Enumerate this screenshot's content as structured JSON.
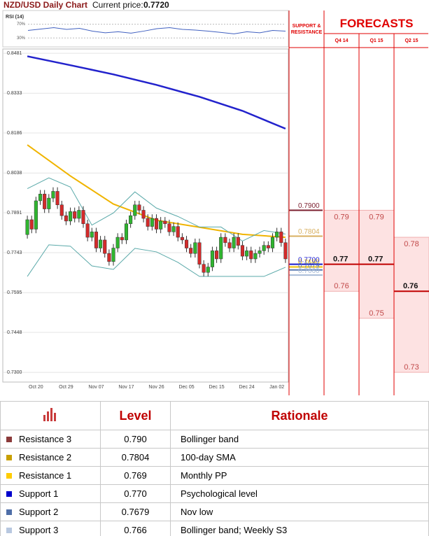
{
  "chart_data": [
    {
      "type": "line",
      "title": "RSI (14)",
      "xlim": [
        0,
        60
      ],
      "ylim": [
        10,
        100
      ],
      "yticks": [
        {
          "value": 70,
          "label": "70%"
        },
        {
          "value": 30,
          "label": "30%"
        }
      ],
      "x": [
        0,
        3,
        6,
        9,
        12,
        15,
        18,
        21,
        24,
        27,
        30,
        33,
        36,
        39,
        42,
        45,
        48,
        51,
        54,
        57,
        60
      ],
      "series": [
        {
          "color": "#4060c0",
          "values": [
            52,
            56,
            60,
            55,
            58,
            50,
            45,
            48,
            44,
            50,
            57,
            60,
            55,
            53,
            50,
            46,
            42,
            48,
            45,
            52,
            50
          ]
        }
      ]
    },
    {
      "type": "candlestick",
      "title": "NZD/USD Daily Chart",
      "price_label": "Current price:",
      "current_price": "0.7720",
      "up_color": "#2fb52f",
      "down_color": "#d42a2a",
      "grid": true,
      "ylim": [
        0.7264,
        0.8497
      ],
      "yticks": [
        0.8481,
        0.8333,
        0.8186,
        0.8038,
        0.7891,
        0.7743,
        0.7595,
        0.7448,
        {
          "value": 0.73,
          "label": "0.7300"
        }
      ],
      "categories": [
        null,
        null,
        "Oct 20",
        null,
        null,
        null,
        null,
        null,
        null,
        "Oct 29",
        null,
        null,
        null,
        null,
        null,
        null,
        "Nov 07",
        null,
        null,
        null,
        null,
        null,
        null,
        "Nov 17",
        null,
        null,
        null,
        null,
        null,
        null,
        "Nov 26",
        null,
        null,
        null,
        null,
        null,
        null,
        "Dec 05",
        null,
        null,
        null,
        null,
        null,
        null,
        "Dec 15",
        null,
        null,
        null,
        null,
        null,
        null,
        "Dec 24",
        null,
        null,
        null,
        null,
        null,
        null,
        "Jan 02",
        null,
        null
      ],
      "open": [
        0.781,
        0.7865,
        0.783,
        0.7935,
        0.796,
        0.7905,
        0.7945,
        0.797,
        0.792,
        0.788,
        0.786,
        0.7895,
        0.787,
        0.79,
        0.785,
        0.78,
        0.782,
        0.776,
        0.779,
        0.774,
        0.771,
        0.776,
        0.78,
        0.779,
        0.785,
        0.788,
        0.792,
        0.79,
        0.787,
        0.784,
        0.787,
        0.783,
        0.786,
        0.785,
        0.782,
        0.784,
        0.78,
        0.779,
        0.776,
        0.774,
        0.778,
        0.77,
        0.767,
        0.769,
        0.775,
        0.772,
        0.78,
        0.778,
        0.776,
        0.78,
        0.777,
        0.773,
        0.775,
        0.772,
        0.774,
        0.775,
        0.777,
        0.776,
        0.78,
        0.782,
        0.778
      ],
      "high": [
        0.788,
        0.788,
        0.795,
        0.7975,
        0.7975,
        0.796,
        0.7985,
        0.7985,
        0.7935,
        0.7895,
        0.791,
        0.791,
        0.7915,
        0.7915,
        0.7865,
        0.7835,
        0.7835,
        0.7805,
        0.7805,
        0.7755,
        0.7775,
        0.7815,
        0.7815,
        0.7865,
        0.7895,
        0.7935,
        0.7935,
        0.7915,
        0.7885,
        0.7885,
        0.7885,
        0.7875,
        0.7875,
        0.7865,
        0.7855,
        0.7855,
        0.7815,
        0.7805,
        0.7775,
        0.7795,
        0.7795,
        0.7715,
        0.7705,
        0.7765,
        0.7765,
        0.7815,
        0.7815,
        0.7795,
        0.7815,
        0.7815,
        0.7785,
        0.7765,
        0.7765,
        0.7755,
        0.7765,
        0.7785,
        0.7785,
        0.7815,
        0.7835,
        0.7835,
        0.7795
      ],
      "low": [
        0.7795,
        0.7815,
        0.7815,
        0.792,
        0.789,
        0.789,
        0.793,
        0.7905,
        0.7865,
        0.7845,
        0.7845,
        0.7855,
        0.7855,
        0.7835,
        0.7785,
        0.7785,
        0.7745,
        0.7745,
        0.7725,
        0.7695,
        0.7695,
        0.7745,
        0.7775,
        0.7775,
        0.7835,
        0.7865,
        0.7885,
        0.7855,
        0.7825,
        0.7825,
        0.7815,
        0.7815,
        0.7835,
        0.7805,
        0.7805,
        0.7785,
        0.7775,
        0.7745,
        0.7725,
        0.7725,
        0.7685,
        0.7655,
        0.7655,
        0.7675,
        0.7705,
        0.7705,
        0.7765,
        0.7745,
        0.7745,
        0.7755,
        0.7715,
        0.7715,
        0.7705,
        0.7705,
        0.7725,
        0.7735,
        0.7745,
        0.7745,
        0.7785,
        0.7765,
        0.7705
      ],
      "close": [
        0.7865,
        0.783,
        0.7935,
        0.796,
        0.7905,
        0.7945,
        0.797,
        0.792,
        0.788,
        0.786,
        0.7895,
        0.787,
        0.79,
        0.785,
        0.78,
        0.782,
        0.776,
        0.779,
        0.774,
        0.771,
        0.776,
        0.78,
        0.779,
        0.785,
        0.788,
        0.792,
        0.79,
        0.787,
        0.784,
        0.787,
        0.783,
        0.786,
        0.785,
        0.782,
        0.784,
        0.78,
        0.779,
        0.776,
        0.774,
        0.778,
        0.77,
        0.767,
        0.769,
        0.775,
        0.772,
        0.78,
        0.778,
        0.776,
        0.78,
        0.777,
        0.773,
        0.775,
        0.772,
        0.774,
        0.775,
        0.777,
        0.776,
        0.78,
        0.782,
        0.778,
        0.772
      ],
      "lines": [
        {
          "color": "#2222cc",
          "width": 2.5,
          "x": [
            0,
            10,
            20,
            30,
            40,
            50,
            60
          ],
          "values": [
            0.847,
            0.8437,
            0.8403,
            0.8364,
            0.832,
            0.8268,
            0.8202
          ]
        },
        {
          "color": "#f0b400",
          "width": 2,
          "x": [
            0,
            10,
            20,
            30,
            40,
            50,
            60
          ],
          "values": [
            0.8142,
            0.8027,
            0.7923,
            0.7863,
            0.7837,
            0.7811,
            0.78
          ]
        },
        {
          "color": "#5aa9a9",
          "width": 1,
          "x": [
            0,
            5,
            10,
            15,
            20,
            25,
            30,
            35,
            40,
            45,
            50,
            55,
            60
          ],
          "values": [
            0.798,
            0.802,
            0.7986,
            0.7845,
            0.789,
            0.7968,
            0.7908,
            0.7877,
            0.7838,
            0.7838,
            0.7786,
            0.7825,
            0.7812
          ]
        },
        {
          "color": "#5aa9a9",
          "width": 1,
          "x": [
            0,
            5,
            10,
            15,
            20,
            25,
            30,
            35,
            40,
            45,
            50,
            55,
            60
          ],
          "values": [
            0.7655,
            0.7772,
            0.7767,
            0.7694,
            0.7681,
            0.7759,
            0.7746,
            0.7707,
            0.7655,
            0.7655,
            0.7655,
            0.7655,
            0.7689
          ]
        }
      ],
      "levels": [
        {
          "value": 0.79,
          "label": "0.7900",
          "color": "#7b1f2f"
        },
        {
          "value": 0.7804,
          "label": "0.7804",
          "color": "#d8b060"
        },
        {
          "value": 0.769,
          "label": "0.7690",
          "color": "#f0c000"
        },
        {
          "value": 0.77,
          "label": "0.7700",
          "color": "#1a1acc"
        },
        {
          "value": 0.7679,
          "label": "0.7679",
          "color": "#5a7ab0"
        },
        {
          "value": 0.766,
          "label": "0.7660",
          "color": "#a8bcd8"
        }
      ]
    },
    {
      "type": "range",
      "title": "FORECASTS",
      "side_title": "SUPPORT & RESISTANCE",
      "categories": [
        "Q4 14",
        "Q1 15",
        "Q2 15"
      ],
      "high": [
        0.79,
        0.79,
        0.78
      ],
      "mid": [
        0.77,
        0.77,
        0.76
      ],
      "low": [
        0.76,
        0.75,
        0.73
      ],
      "fill": "#fde2e2",
      "mid_color": "#c00000"
    }
  ],
  "table": {
    "header": [
      "Level",
      "Rationale"
    ],
    "colors": [
      "#8b3a3a",
      "#c8a000",
      "#ffcc00",
      "#0000cc",
      "#4f6fa8",
      "#b8c8e0"
    ],
    "rows": [
      [
        "Resistance 3",
        "0.790",
        "Bollinger band"
      ],
      [
        "Resistance 2",
        "0.7804",
        "100-day SMA"
      ],
      [
        "Resistance 1",
        "0.769",
        "Monthly PP"
      ],
      [
        "Support 1",
        "0.770",
        "Psychological level"
      ],
      [
        "Support 2",
        "0.7679",
        "Nov low"
      ],
      [
        "Support 3",
        "0.766",
        "Bollinger band; Weekly S3"
      ]
    ]
  }
}
